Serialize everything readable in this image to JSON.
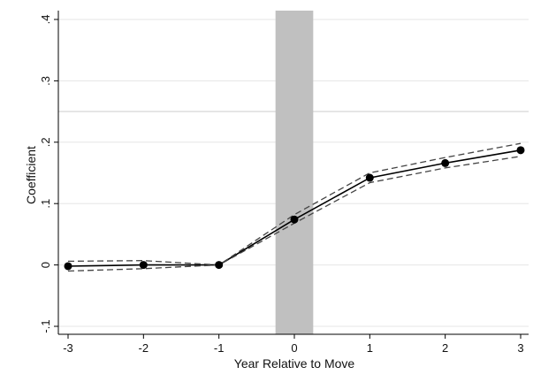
{
  "chart_data": {
    "type": "line",
    "xlabel": "Year Relative to Move",
    "ylabel": "Coefficient",
    "xlim": [
      -3,
      3
    ],
    "ylim": [
      -0.1,
      0.4
    ],
    "x_ticks": [
      {
        "value": -3,
        "label": "-3"
      },
      {
        "value": -2,
        "label": "-2"
      },
      {
        "value": -1,
        "label": "-1"
      },
      {
        "value": 0,
        "label": "0"
      },
      {
        "value": 1,
        "label": "1"
      },
      {
        "value": 2,
        "label": "2"
      },
      {
        "value": 3,
        "label": "3"
      }
    ],
    "y_ticks": [
      {
        "value": -0.1,
        "label": "-.1"
      },
      {
        "value": 0,
        "label": "0"
      },
      {
        "value": 0.1,
        "label": ".1"
      },
      {
        "value": 0.2,
        "label": ".2"
      },
      {
        "value": 0.3,
        "label": ".3"
      },
      {
        "value": 0.4,
        "label": ".4"
      }
    ],
    "grid": true,
    "x": [
      -3,
      -2,
      -1,
      0,
      1,
      2,
      3
    ],
    "series": [
      {
        "role": "estimate",
        "style": "solid-with-markers",
        "color": "#000000",
        "values": [
          -0.002,
          0.0,
          0.0,
          0.074,
          0.142,
          0.166,
          0.187
        ]
      },
      {
        "role": "upper-bound",
        "style": "dashed",
        "color": "#444444",
        "values": [
          0.006,
          0.007,
          0.0,
          0.082,
          0.15,
          0.175,
          0.198
        ]
      },
      {
        "role": "lower-bound",
        "style": "dashed",
        "color": "#444444",
        "values": [
          -0.01,
          -0.006,
          0.0,
          0.068,
          0.134,
          0.158,
          0.177
        ]
      }
    ],
    "shaded_band": {
      "x_range": [
        -0.25,
        0.25
      ],
      "color": "#c0c0c0"
    },
    "horizontal_lines": [
      {
        "y": 0.25,
        "color": "#dddddd"
      }
    ]
  }
}
